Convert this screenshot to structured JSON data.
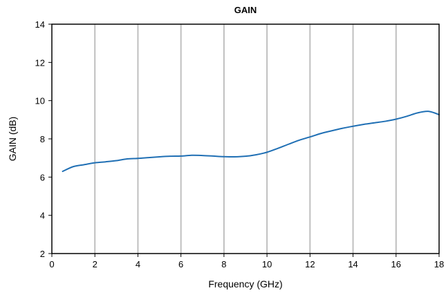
{
  "chart_data": {
    "type": "line",
    "title": "GAIN",
    "xlabel": "Frequency (GHz)",
    "ylabel": "GAIN (dB)",
    "xlim": [
      0,
      18
    ],
    "ylim": [
      2,
      14
    ],
    "xticks": [
      0,
      2,
      4,
      6,
      8,
      10,
      12,
      14,
      16,
      18
    ],
    "yticks": [
      2,
      4,
      6,
      8,
      10,
      12,
      14
    ],
    "grid": "vertical",
    "legend": "none",
    "series": [
      {
        "color": "#1f6fb4",
        "x": [
          0.5,
          1,
          1.5,
          2,
          2.5,
          3,
          3.5,
          4,
          4.5,
          5,
          5.5,
          6,
          6.5,
          7,
          7.5,
          8,
          8.5,
          9,
          9.5,
          10,
          10.5,
          11,
          11.5,
          12,
          12.5,
          13,
          13.5,
          14,
          14.5,
          15,
          15.5,
          16,
          16.5,
          17,
          17.5,
          18
        ],
        "y": [
          6.3,
          6.55,
          6.65,
          6.75,
          6.8,
          6.86,
          6.95,
          6.98,
          7.02,
          7.06,
          7.09,
          7.1,
          7.14,
          7.13,
          7.1,
          7.07,
          7.06,
          7.09,
          7.17,
          7.3,
          7.5,
          7.72,
          7.93,
          8.1,
          8.28,
          8.42,
          8.55,
          8.66,
          8.76,
          8.84,
          8.92,
          9.03,
          9.18,
          9.36,
          9.44,
          9.27
        ]
      }
    ]
  }
}
